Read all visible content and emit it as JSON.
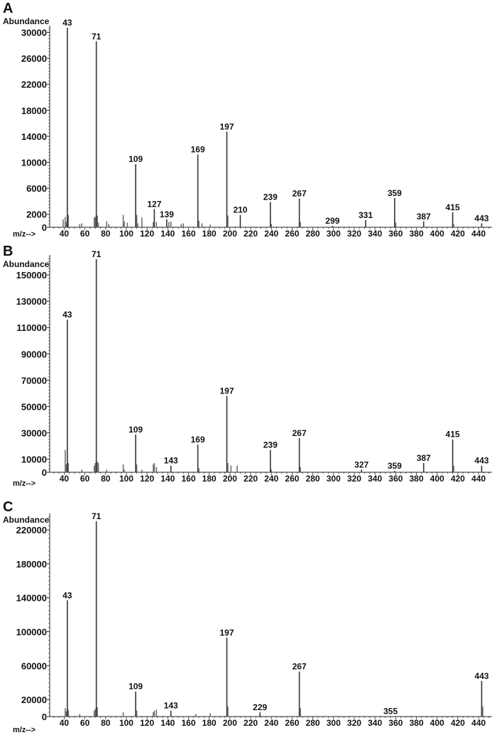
{
  "chart_data": [
    {
      "type": "bar",
      "panel_label": "A",
      "ylabel": "Abundance",
      "xlabel": "m/z-->",
      "xlim": [
        26,
        453
      ],
      "ylim": [
        0,
        30600
      ],
      "xticks": [
        40,
        60,
        80,
        100,
        120,
        140,
        160,
        180,
        200,
        220,
        240,
        260,
        280,
        300,
        320,
        340,
        360,
        380,
        400,
        420,
        440
      ],
      "yticks": [
        0,
        2000,
        6000,
        10000,
        14000,
        18000,
        22000,
        26000,
        30000
      ],
      "grid": false,
      "bar_color": "#6e6e6e",
      "labeled_peaks": [
        [
          43,
          30700
        ],
        [
          71,
          28600
        ],
        [
          109,
          9700
        ],
        [
          127,
          2800
        ],
        [
          139,
          1200
        ],
        [
          169,
          11200
        ],
        [
          197,
          14700
        ],
        [
          210,
          1900
        ],
        [
          239,
          3900
        ],
        [
          267,
          4400
        ],
        [
          299,
          200
        ],
        [
          331,
          1100
        ],
        [
          359,
          4500
        ],
        [
          387,
          900
        ],
        [
          415,
          2300
        ],
        [
          443,
          600
        ]
      ],
      "minor_peaks": [
        [
          39,
          1200
        ],
        [
          41,
          1600
        ],
        [
          42,
          800
        ],
        [
          44,
          1900
        ],
        [
          55,
          500
        ],
        [
          57,
          600
        ],
        [
          69,
          1500
        ],
        [
          70,
          1600
        ],
        [
          72,
          1800
        ],
        [
          73,
          700
        ],
        [
          81,
          900
        ],
        [
          83,
          500
        ],
        [
          97,
          1900
        ],
        [
          98,
          900
        ],
        [
          101,
          700
        ],
        [
          110,
          1900
        ],
        [
          111,
          600
        ],
        [
          115,
          1500
        ],
        [
          126,
          800
        ],
        [
          129,
          800
        ],
        [
          141,
          800
        ],
        [
          143,
          900
        ],
        [
          153,
          500
        ],
        [
          155,
          600
        ],
        [
          170,
          1000
        ],
        [
          173,
          600
        ],
        [
          181,
          400
        ],
        [
          198,
          1800
        ],
        [
          240,
          500
        ],
        [
          268,
          800
        ],
        [
          360,
          700
        ],
        [
          416,
          500
        ]
      ]
    },
    {
      "type": "bar",
      "panel_label": "B",
      "ylabel": "Abundance",
      "xlabel": "m/z-->",
      "xlim": [
        26,
        453
      ],
      "ylim": [
        0,
        163000
      ],
      "xticks": [
        40,
        60,
        80,
        100,
        120,
        140,
        160,
        180,
        200,
        220,
        240,
        260,
        280,
        300,
        320,
        340,
        360,
        380,
        400,
        420,
        440
      ],
      "yticks": [
        0,
        10000,
        30000,
        50000,
        70000,
        90000,
        110000,
        130000,
        150000
      ],
      "grid": false,
      "bar_color": "#6e6e6e",
      "labeled_peaks": [
        [
          43,
          116000
        ],
        [
          71,
          162000
        ],
        [
          109,
          28700
        ],
        [
          143,
          5000
        ],
        [
          169,
          21000
        ],
        [
          197,
          58000
        ],
        [
          239,
          17000
        ],
        [
          267,
          26000
        ],
        [
          327,
          2000
        ],
        [
          359,
          1000
        ],
        [
          387,
          7000
        ],
        [
          415,
          25000
        ],
        [
          443,
          5000
        ]
      ],
      "minor_peaks": [
        [
          41,
          17000
        ],
        [
          42,
          6000
        ],
        [
          44,
          7000
        ],
        [
          57,
          2000
        ],
        [
          69,
          5000
        ],
        [
          70,
          7000
        ],
        [
          72,
          8000
        ],
        [
          73,
          7000
        ],
        [
          81,
          2000
        ],
        [
          97,
          6000
        ],
        [
          98,
          2000
        ],
        [
          110,
          6000
        ],
        [
          115,
          2000
        ],
        [
          126,
          6000
        ],
        [
          127,
          7000
        ],
        [
          129,
          4000
        ],
        [
          170,
          3000
        ],
        [
          198,
          7000
        ],
        [
          201,
          5000
        ],
        [
          207,
          5000
        ],
        [
          240,
          2000
        ],
        [
          268,
          4000
        ],
        [
          416,
          5000
        ]
      ]
    },
    {
      "type": "bar",
      "panel_label": "C",
      "ylabel": "Abundance",
      "xlabel": "m/z-->",
      "xlim": [
        26,
        453
      ],
      "ylim": [
        0,
        236000
      ],
      "xticks": [
        40,
        60,
        80,
        100,
        120,
        140,
        160,
        180,
        200,
        220,
        240,
        260,
        280,
        300,
        320,
        340,
        360,
        380,
        400,
        420,
        440
      ],
      "yticks": [
        0,
        20000,
        60000,
        100000,
        140000,
        180000,
        220000
      ],
      "grid": false,
      "bar_color": "#6e6e6e",
      "labeled_peaks": [
        [
          43,
          137000
        ],
        [
          71,
          230000
        ],
        [
          109,
          29600
        ],
        [
          143,
          7000
        ],
        [
          197,
          93000
        ],
        [
          229,
          5000
        ],
        [
          267,
          53000
        ],
        [
          355,
          500
        ],
        [
          443,
          42000
        ]
      ],
      "minor_peaks": [
        [
          41,
          10000
        ],
        [
          42,
          6000
        ],
        [
          44,
          8000
        ],
        [
          55,
          3000
        ],
        [
          69,
          7000
        ],
        [
          70,
          9000
        ],
        [
          72,
          11000
        ],
        [
          97,
          5000
        ],
        [
          110,
          7000
        ],
        [
          126,
          5000
        ],
        [
          127,
          7000
        ],
        [
          129,
          8000
        ],
        [
          167,
          3000
        ],
        [
          181,
          4000
        ],
        [
          198,
          12000
        ],
        [
          268,
          10000
        ],
        [
          444,
          12000
        ]
      ]
    }
  ]
}
